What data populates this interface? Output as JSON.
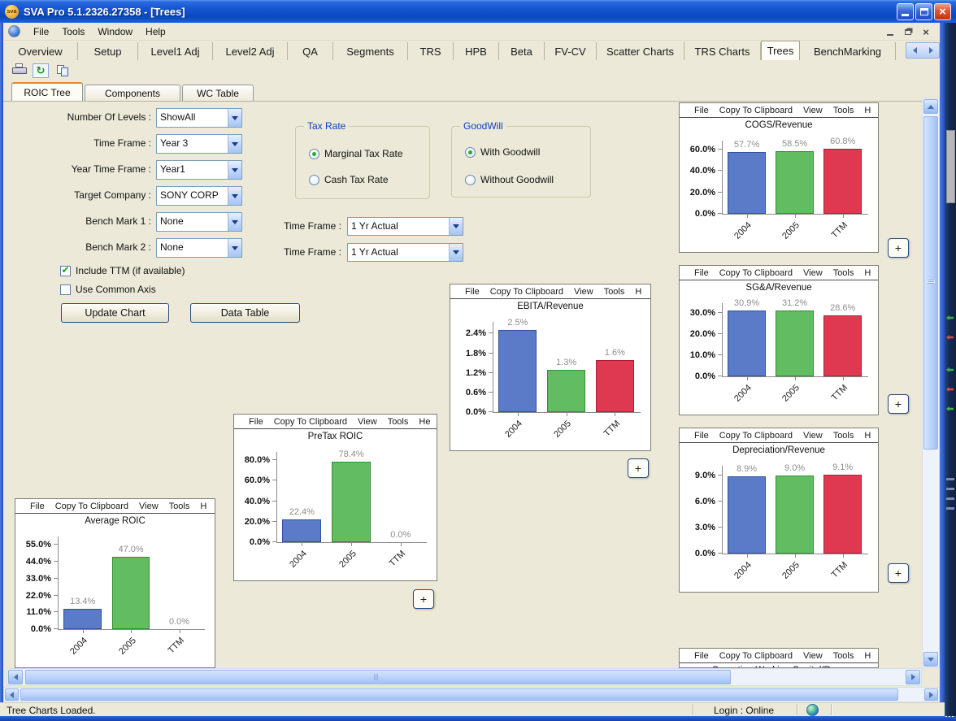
{
  "window": {
    "title": "SVA Pro 5.1.2326.27358 - [Trees]",
    "icon_label": "sva"
  },
  "menu_bar": {
    "items": [
      "File",
      "Tools",
      "Window",
      "Help"
    ]
  },
  "tabs": {
    "items": [
      "Overview",
      "Setup",
      "Level1 Adj",
      "Level2 Adj",
      "QA",
      "Segments",
      "TRS",
      "HPB",
      "Beta",
      "FV-CV",
      "Scatter Charts",
      "TRS Charts",
      "Trees",
      "BenchMarking"
    ],
    "selected": "Trees"
  },
  "subtabs": {
    "items": [
      "ROIC Tree",
      "Components",
      "WC Table"
    ],
    "selected": "ROIC Tree"
  },
  "form": {
    "fields": [
      {
        "label": "Number Of Levels :",
        "value": "ShowAll"
      },
      {
        "label": "Time Frame :",
        "value": "Year 3"
      },
      {
        "label": "Year Time Frame :",
        "value": "Year1"
      },
      {
        "label": "Target Company :",
        "value": "SONY CORP"
      },
      {
        "label": "Bench Mark 1 :",
        "value": "None"
      },
      {
        "label": "Bench Mark 2 :",
        "value": "None"
      }
    ],
    "checkboxes": [
      {
        "label": "Include TTM (if available)",
        "checked": true
      },
      {
        "label": "Use Common Axis",
        "checked": false
      }
    ],
    "buttons": [
      "Update Chart",
      "Data Table"
    ],
    "tax_rate_group": {
      "title": "Tax Rate",
      "options": [
        {
          "label": "Marginal Tax Rate",
          "selected": true
        },
        {
          "label": "Cash Tax Rate",
          "selected": false
        }
      ]
    },
    "goodwill_group": {
      "title": "GoodWill",
      "options": [
        {
          "label": "With Goodwill",
          "selected": true
        },
        {
          "label": "Without Goodwill",
          "selected": false
        }
      ]
    },
    "time_frames": [
      {
        "label": "Time Frame :",
        "value": "1 Yr Actual"
      },
      {
        "label": "Time Frame :",
        "value": "1 Yr Actual"
      }
    ]
  },
  "chart_colors": {
    "bars": [
      "#5B7BC8",
      "#62BD62",
      "#DF3951"
    ],
    "bar_borders": [
      "#31519E",
      "#2F8F2F",
      "#A82038"
    ],
    "value_label": "#8e8e8e"
  },
  "ui": {
    "plus_label": "+"
  },
  "chart_data": [
    {
      "type": "bar",
      "title": "COGS/Revenue",
      "menu": [
        "File",
        "Copy To Clipboard",
        "View",
        "Tools",
        "H"
      ],
      "categories": [
        "2004",
        "2005",
        "TTM"
      ],
      "values": [
        57.7,
        58.5,
        60.8
      ],
      "value_labels": [
        "57.7%",
        "58.5%",
        "60.8%"
      ],
      "ytick_values": [
        0,
        20,
        40,
        60
      ],
      "ytick_labels": [
        "0.0%",
        "20.0%",
        "40.0%",
        "60.0%"
      ],
      "scale_max": 68,
      "grid": false,
      "legend": false
    },
    {
      "type": "bar",
      "title": "SG&A/Revenue",
      "menu": [
        "File",
        "Copy To Clipboard",
        "View",
        "Tools",
        "H"
      ],
      "categories": [
        "2004",
        "2005",
        "TTM"
      ],
      "values": [
        30.9,
        31.2,
        28.6
      ],
      "value_labels": [
        "30.9%",
        "31.2%",
        "28.6%"
      ],
      "ytick_values": [
        0,
        10,
        20,
        30
      ],
      "ytick_labels": [
        "0.0%",
        "10.0%",
        "20.0%",
        "30.0%"
      ],
      "scale_max": 34.5,
      "grid": false,
      "legend": false
    },
    {
      "type": "bar",
      "title": "Depreciation/Revenue",
      "menu": [
        "File",
        "Copy To Clipboard",
        "View",
        "Tools",
        "H"
      ],
      "categories": [
        "2004",
        "2005",
        "TTM"
      ],
      "values": [
        8.9,
        9.0,
        9.1
      ],
      "value_labels": [
        "8.9%",
        "9.0%",
        "9.1%"
      ],
      "ytick_values": [
        0,
        3,
        6,
        9
      ],
      "ytick_labels": [
        "0.0%",
        "3.0%",
        "6.0%",
        "9.0%"
      ],
      "scale_max": 10.1,
      "grid": false,
      "legend": false
    },
    {
      "type": "bar",
      "title": "EBITA/Revenue",
      "menu": [
        "File",
        "Copy To Clipboard",
        "View",
        "Tools",
        "H"
      ],
      "categories": [
        "2004",
        "2005",
        "TTM"
      ],
      "values": [
        2.5,
        1.3,
        1.6
      ],
      "value_labels": [
        "2.5%",
        "1.3%",
        "1.6%"
      ],
      "ytick_values": [
        0,
        0.6,
        1.2,
        1.8,
        2.4
      ],
      "ytick_labels": [
        "0.0%",
        "0.6%",
        "1.2%",
        "1.8%",
        "2.4%"
      ],
      "scale_max": 2.76,
      "grid": false,
      "legend": false
    },
    {
      "type": "bar",
      "title": "PreTax ROIC",
      "menu": [
        "File",
        "Copy To Clipboard",
        "View",
        "Tools",
        "He"
      ],
      "categories": [
        "2004",
        "2005",
        "TTM"
      ],
      "values": [
        22.4,
        78.4,
        0.0
      ],
      "value_labels": [
        "22.4%",
        "78.4%",
        "0.0%"
      ],
      "ytick_values": [
        0,
        20,
        40,
        60,
        80
      ],
      "ytick_labels": [
        "0.0%",
        "20.0%",
        "40.0%",
        "60.0%",
        "80.0%"
      ],
      "scale_max": 88,
      "grid": false,
      "legend": false
    },
    {
      "type": "bar",
      "title": "Average ROIC",
      "menu": [
        "File",
        "Copy To Clipboard",
        "View",
        "Tools",
        "H"
      ],
      "categories": [
        "2004",
        "2005",
        "TTM"
      ],
      "values": [
        13.4,
        47.0,
        0.0
      ],
      "value_labels": [
        "13.4%",
        "47.0%",
        "0.0%"
      ],
      "ytick_values": [
        0,
        11,
        22,
        33,
        44,
        55
      ],
      "ytick_labels": [
        "0.0%",
        "11.0%",
        "22.0%",
        "33.0%",
        "44.0%",
        "55.0%"
      ],
      "scale_max": 60.5,
      "grid": false,
      "legend": false
    },
    {
      "type": "bar",
      "title": "Operating Working Capital/Reve",
      "menu": [
        "File",
        "Copy To Clipboard",
        "View",
        "Tools",
        "H"
      ],
      "categories": [],
      "values": [],
      "value_labels": [],
      "ytick_values": [],
      "ytick_labels": [],
      "scale_max": 1,
      "grid": false,
      "legend": false,
      "partially_visible": true
    }
  ],
  "status_bar": {
    "message": "Tree Charts Loaded.",
    "login": "Login : Online"
  }
}
